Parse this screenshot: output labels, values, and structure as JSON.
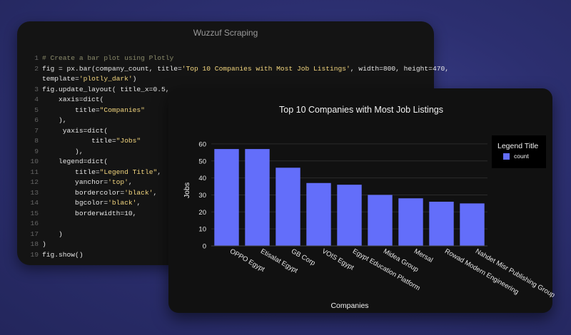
{
  "code_window": {
    "title": "Wuzzuf Scraping",
    "lines": [
      {
        "n": "1",
        "tokens": [
          {
            "t": "# Create a bar plot using Plotly",
            "k": "comment"
          }
        ]
      },
      {
        "n": "2",
        "tokens": [
          {
            "t": "fig = px.bar(company_count, title=",
            "k": "default"
          },
          {
            "t": "'Top 10 Companies with Most Job Listings'",
            "k": "string"
          },
          {
            "t": ", width=800, height=470,",
            "k": "default"
          }
        ]
      },
      {
        "n": "",
        "tokens": [
          {
            "t": "template=",
            "k": "default"
          },
          {
            "t": "'plotly_dark'",
            "k": "string"
          },
          {
            "t": ")",
            "k": "default"
          }
        ]
      },
      {
        "n": "3",
        "tokens": [
          {
            "t": "fig.update_layout( title_x=0.5,",
            "k": "default"
          }
        ]
      },
      {
        "n": "4",
        "tokens": [
          {
            "t": "    xaxis=dict(",
            "k": "default"
          }
        ]
      },
      {
        "n": "5",
        "tokens": [
          {
            "t": "        title=",
            "k": "default"
          },
          {
            "t": "\"Companies\"",
            "k": "string"
          }
        ]
      },
      {
        "n": "6",
        "tokens": [
          {
            "t": "    ),",
            "k": "default"
          }
        ]
      },
      {
        "n": "7",
        "tokens": [
          {
            "t": "     yaxis=dict(",
            "k": "default"
          }
        ]
      },
      {
        "n": "8",
        "tokens": [
          {
            "t": "            title=",
            "k": "default"
          },
          {
            "t": "\"Jobs\"",
            "k": "string"
          }
        ]
      },
      {
        "n": "9",
        "tokens": [
          {
            "t": "        ),",
            "k": "default"
          }
        ]
      },
      {
        "n": "10",
        "tokens": [
          {
            "t": "    legend=dict(",
            "k": "default"
          }
        ]
      },
      {
        "n": "11",
        "tokens": [
          {
            "t": "        title=",
            "k": "default"
          },
          {
            "t": "\"Legend Title\"",
            "k": "string"
          },
          {
            "t": ",",
            "k": "default"
          }
        ]
      },
      {
        "n": "12",
        "tokens": [
          {
            "t": "        yanchor=",
            "k": "default"
          },
          {
            "t": "'top'",
            "k": "string"
          },
          {
            "t": ",",
            "k": "default"
          }
        ]
      },
      {
        "n": "13",
        "tokens": [
          {
            "t": "        bordercolor=",
            "k": "default"
          },
          {
            "t": "'black'",
            "k": "string"
          },
          {
            "t": ",",
            "k": "default"
          }
        ]
      },
      {
        "n": "14",
        "tokens": [
          {
            "t": "        bgcolor=",
            "k": "default"
          },
          {
            "t": "'black'",
            "k": "string"
          },
          {
            "t": ",",
            "k": "default"
          }
        ]
      },
      {
        "n": "15",
        "tokens": [
          {
            "t": "        borderwidth=10,",
            "k": "default"
          }
        ]
      },
      {
        "n": "16",
        "tokens": [
          {
            "t": "",
            "k": "default"
          }
        ]
      },
      {
        "n": "17",
        "tokens": [
          {
            "t": "    )",
            "k": "default"
          }
        ]
      },
      {
        "n": "18",
        "tokens": [
          {
            "t": ")",
            "k": "default"
          }
        ]
      },
      {
        "n": "19",
        "tokens": [
          {
            "t": "fig.show()",
            "k": "default"
          }
        ]
      }
    ]
  },
  "chart_data": {
    "type": "bar",
    "title": "Top 10 Companies with Most Job Listings",
    "xlabel": "Companies",
    "ylabel": "Jobs",
    "categories": [
      "OPPO Egypt",
      "Etisalat Egypt",
      "GB Corp",
      "VOIS Egypt",
      "Egypt Education Platform",
      "Midea Group",
      "Mersal",
      "Rowad Modern Engineering",
      "Nahdet Misr Publishing Group"
    ],
    "series": [
      {
        "name": "count",
        "values": [
          57,
          57,
          46,
          37,
          36,
          30,
          28,
          26,
          25
        ]
      }
    ],
    "ylim": [
      0,
      65
    ],
    "yticks": [
      0,
      10,
      20,
      30,
      40,
      50,
      60
    ],
    "grid": true,
    "legend_title": "Legend Title",
    "legend_position": "top-right",
    "bar_color": "#636efa",
    "template": "plotly_dark"
  }
}
